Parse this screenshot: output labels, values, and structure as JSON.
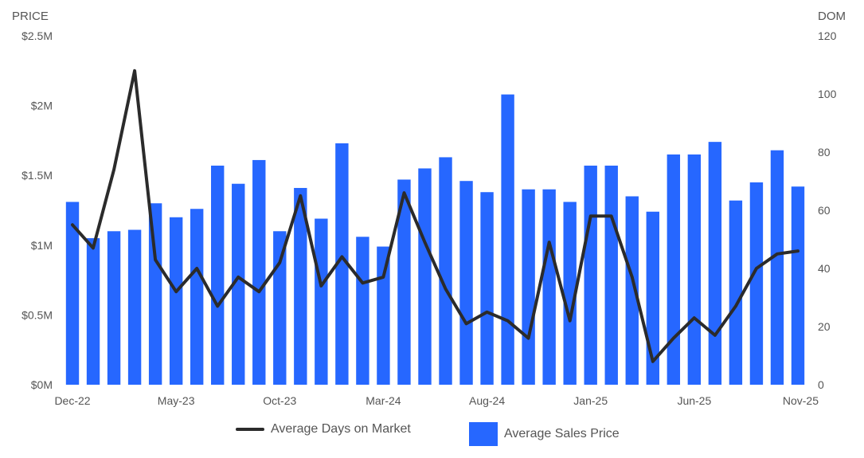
{
  "chart_data": {
    "type": "bar",
    "left_axis": {
      "title": "PRICE",
      "ticks": [
        "$0M",
        "$0.5M",
        "$1M",
        "$1.5M",
        "$2M",
        "$2.5M"
      ],
      "ylim": [
        0,
        2500000
      ]
    },
    "right_axis": {
      "title": "DOM",
      "ticks": [
        "0",
        "20",
        "40",
        "60",
        "80",
        "100",
        "120"
      ],
      "ylim": [
        0,
        120
      ]
    },
    "x_tick_labels": [
      "Dec-22",
      "May-23",
      "Oct-23",
      "Mar-24",
      "Aug-24",
      "Jan-25",
      "Jun-25",
      "Nov-25"
    ],
    "categories": [
      "Dec-22",
      "Jan-23",
      "Feb-23",
      "Mar-23",
      "Apr-23",
      "May-23",
      "Jun-23",
      "Jul-23",
      "Aug-23",
      "Sep-23",
      "Oct-23",
      "Nov-23",
      "Dec-23",
      "Jan-24",
      "Feb-24",
      "Mar-24",
      "Apr-24",
      "May-24",
      "Jun-24",
      "Jul-24",
      "Aug-24",
      "Sep-24",
      "Oct-24",
      "Nov-24",
      "Dec-24",
      "Jan-25",
      "Feb-25",
      "Mar-25",
      "Apr-25",
      "May-25",
      "Jun-25",
      "Jul-25",
      "Aug-25",
      "Sep-25",
      "Oct-25",
      "Nov-25"
    ],
    "series": [
      {
        "name": "Average Sales Price",
        "type": "bar",
        "axis": "left",
        "color": "#2667ff",
        "values": [
          1310000,
          1050000,
          1100000,
          1110000,
          1300000,
          1200000,
          1260000,
          1570000,
          1440000,
          1610000,
          1100000,
          1410000,
          1190000,
          1730000,
          1060000,
          990000,
          1470000,
          1550000,
          1630000,
          1460000,
          1380000,
          2080000,
          1400000,
          1400000,
          1310000,
          1570000,
          1570000,
          1350000,
          1240000,
          1650000,
          1650000,
          1740000,
          1320000,
          1450000,
          1680000,
          1420000
        ]
      },
      {
        "name": "Average Days on Market",
        "type": "line",
        "axis": "right",
        "color": "#2b2b2b",
        "values": [
          55,
          47,
          74,
          108,
          43,
          32,
          40,
          27,
          37,
          32,
          42,
          65,
          34,
          44,
          35,
          37,
          66,
          49,
          33,
          21,
          25,
          22,
          16,
          49,
          22,
          58,
          58,
          37,
          8,
          16,
          23,
          17,
          27,
          40,
          45,
          46
        ]
      }
    ],
    "legend": [
      "Average Days on Market",
      "Average Sales Price"
    ],
    "grid": false,
    "legend_position": "bottom"
  }
}
